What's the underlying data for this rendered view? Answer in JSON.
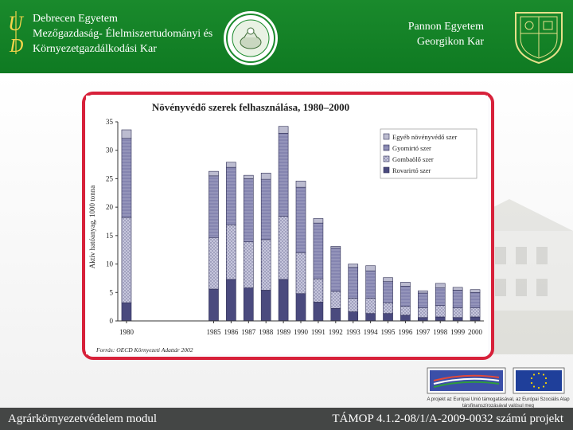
{
  "header": {
    "left_lines": [
      "Debrecen Egyetem",
      "Mezőgazdaság- Élelmiszertudományi és",
      "Környezetgazdálkodási Kar"
    ],
    "right_lines": [
      "Pannon Egyetem",
      "Georgikon Kar"
    ]
  },
  "footer": {
    "left": "Agrárkörnyezetvédelem modul",
    "right": "TÁMOP 4.1.2-08/1/A-2009-0032 számú projekt"
  },
  "eu": {
    "caption": "A projekt az Európai Unió támogatásával, az Európai Szociális Alap társfinanszírozásával valósul meg"
  },
  "colors": {
    "header_green": "#138326",
    "frame_red": "#d7213a",
    "footer_gray": "#444645"
  },
  "chart_data": {
    "type": "bar",
    "stacked": true,
    "title": "Növényvédő szerek felhasználása, 1980–2000",
    "ylabel": "Aktív hatóanyag, 1000 tonna",
    "xlabel": "",
    "source": "Forrás: OECD Környezeti Adattár 2002",
    "categories": [
      "1980",
      "1985",
      "1986",
      "1987",
      "1988",
      "1989",
      "1990",
      "1991",
      "1992",
      "1993",
      "1994",
      "1995",
      "1996",
      "1997",
      "1998",
      "1999",
      "2000"
    ],
    "ylim": [
      0,
      35
    ],
    "yticks": [
      0,
      5,
      10,
      15,
      20,
      25,
      30,
      35
    ],
    "grid": false,
    "legend_position": "top-right",
    "series": [
      {
        "name": "Rovarirtó szer",
        "color": "#4a4a7e",
        "values": [
          3.2,
          5.6,
          7.3,
          5.8,
          5.4,
          7.3,
          4.8,
          3.3,
          2.2,
          1.6,
          1.3,
          1.3,
          1.0,
          0.6,
          0.7,
          0.6,
          0.7
        ]
      },
      {
        "name": "Gombaölő szer",
        "color": "#b9b9d6",
        "values": [
          15.0,
          9.0,
          9.6,
          8.1,
          8.9,
          11.1,
          7.2,
          4.1,
          3.0,
          2.4,
          2.7,
          1.9,
          1.6,
          1.7,
          2.0,
          1.7,
          1.6
        ]
      },
      {
        "name": "Gyomirtó szer",
        "color": "#7d7daa",
        "values": [
          13.9,
          10.9,
          10.1,
          11.1,
          10.6,
          14.6,
          11.5,
          9.8,
          7.6,
          5.4,
          4.8,
          3.7,
          3.5,
          2.6,
          3.1,
          3.1,
          2.7
        ]
      },
      {
        "name": "Egyéb növényvédő szer",
        "color": "#bcbcd0",
        "values": [
          1.5,
          0.8,
          0.9,
          0.6,
          1.1,
          1.2,
          1.1,
          0.8,
          0.3,
          0.6,
          0.9,
          0.7,
          0.7,
          0.4,
          0.8,
          0.5,
          0.5
        ]
      }
    ]
  }
}
